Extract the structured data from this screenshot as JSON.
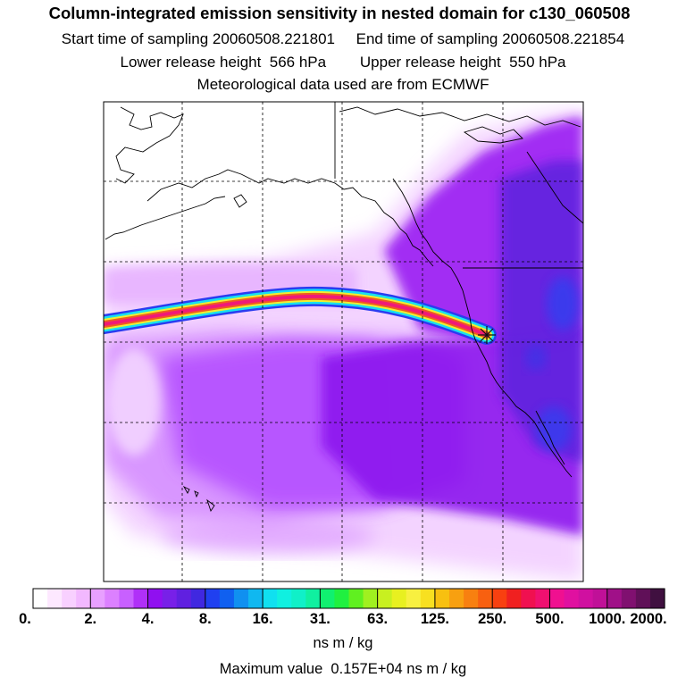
{
  "header": {
    "title": "Column-integrated emission sensitivity in nested domain for c130_060508",
    "line2": "Start time of sampling 20060508.221801     End time of sampling 20060508.221854",
    "line3": "Lower release height  566 hPa        Upper release height  550 hPa",
    "line4": "Meteorological data used are from ECMWF"
  },
  "map": {
    "release_marker_icon": "star-cross-icon",
    "plume_colors": [
      "#2a3cf0",
      "#18e0ee",
      "#f0ee30",
      "#f05a20",
      "#f01a78"
    ],
    "background_color": "#ffffff",
    "haze_colors": [
      "#f0c8ff",
      "#d890ff",
      "#b048ff",
      "#8c10f0",
      "#5a1cdc",
      "#3040f0"
    ]
  },
  "colorbar": {
    "tick_labels": [
      "0.",
      "2.",
      "4.",
      "8.",
      "16.",
      "31.",
      "63.",
      "125.",
      "250.",
      "500.",
      "1000.",
      "2000."
    ],
    "units": "ns m / kg",
    "colors": [
      "#ffffff",
      "#fde8ff",
      "#f8d0ff",
      "#f2b8ff",
      "#e8a0ff",
      "#dc80ff",
      "#c860ff",
      "#b030f8",
      "#9010f0",
      "#7820e8",
      "#6020e0",
      "#4028e0",
      "#2040f0",
      "#1060f0",
      "#1090f0",
      "#10b8f0",
      "#10e0f0",
      "#10f0e0",
      "#10f0c8",
      "#10f0a0",
      "#10f070",
      "#20f040",
      "#60f020",
      "#a0f020",
      "#c8f020",
      "#e8f020",
      "#f8f040",
      "#f8e020",
      "#f8c010",
      "#f8a010",
      "#f88010",
      "#f86010",
      "#f84010",
      "#f02020",
      "#f01050",
      "#f01070",
      "#f01090",
      "#e010a0",
      "#d010a0",
      "#c01098",
      "#a01088",
      "#801070",
      "#601058",
      "#401040"
    ]
  },
  "footer": {
    "max_value": "Maximum value  0.157E+04 ns m / kg"
  }
}
